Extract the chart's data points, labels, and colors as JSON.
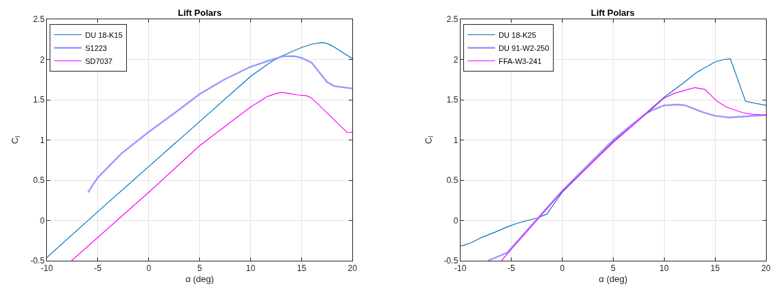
{
  "chart_data": [
    {
      "type": "line",
      "title": "Lift Polars",
      "xlabel": "α (deg)",
      "ylabel": "C$_{l}$",
      "xlim": [
        -10,
        20
      ],
      "xticks": [
        -10,
        -5,
        0,
        5,
        10,
        15,
        20
      ],
      "ylim": [
        -0.5,
        2.5
      ],
      "yticks": [
        -0.5,
        0,
        0.5,
        1,
        1.5,
        2,
        2.5
      ],
      "grid": true,
      "legend": "top left",
      "series": [
        {
          "name": "DU 18-K15",
          "color": "#0072bd",
          "x": [
            -10,
            -5,
            0,
            5,
            10,
            12,
            13,
            15,
            16,
            17,
            17.5,
            18,
            20
          ],
          "values": [
            -0.46,
            0.11,
            0.67,
            1.23,
            1.79,
            1.97,
            2.04,
            2.15,
            2.19,
            2.21,
            2.2,
            2.17,
            2.01
          ]
        },
        {
          "name": "S1223",
          "color": "#9999ff",
          "x": [
            -5.96,
            -5.4,
            -4.95,
            -2.7,
            0,
            2.9,
            5,
            7.4,
            10,
            11.9,
            13.2,
            14.3,
            15,
            16,
            17.5,
            18.2,
            20
          ],
          "values": [
            0.35,
            0.46,
            0.54,
            0.83,
            1.1,
            1.37,
            1.57,
            1.75,
            1.91,
            1.99,
            2.04,
            2.04,
            2.02,
            1.96,
            1.72,
            1.67,
            1.64
          ]
        },
        {
          "name": "SD7037",
          "color": "#ff00ff",
          "x": [
            -7.58,
            0,
            5,
            10,
            11.65,
            12.55,
            13.1,
            13.7,
            14.6,
            15.5,
            16,
            19.5,
            20
          ],
          "values": [
            -0.5,
            0.35,
            0.93,
            1.41,
            1.54,
            1.58,
            1.59,
            1.58,
            1.56,
            1.55,
            1.52,
            1.09,
            1.1
          ]
        }
      ]
    },
    {
      "type": "line",
      "title": "Lift Polars",
      "xlabel": "α (deg)",
      "ylabel": "C$_{l}$",
      "xlim": [
        -10,
        20
      ],
      "xticks": [
        -10,
        -5,
        0,
        5,
        10,
        15,
        20
      ],
      "ylim": [
        -0.5,
        2.5
      ],
      "yticks": [
        -0.5,
        0,
        0.5,
        1,
        1.5,
        2,
        2.5
      ],
      "grid": true,
      "legend": "top left",
      "series": [
        {
          "name": "DU 18-K25",
          "color": "#0072bd",
          "x": [
            -10,
            -9,
            -7.9,
            -6.5,
            -5.4,
            -4.3,
            -3.4,
            -2.5,
            -1.5,
            -0.9,
            0,
            5,
            10,
            11.9,
            13.2,
            15,
            15.9,
            16.5,
            18,
            20
          ],
          "values": [
            -0.32,
            -0.28,
            -0.21,
            -0.14,
            -0.08,
            -0.03,
            0.0,
            0.03,
            0.08,
            0.19,
            0.35,
            0.98,
            1.53,
            1.71,
            1.84,
            1.97,
            2.0,
            2.01,
            1.48,
            1.43
          ]
        },
        {
          "name": "DU 91-W2-250",
          "color": "#9999ff",
          "x": [
            -7.3,
            -5.4,
            0,
            5,
            8.1,
            9,
            10,
            11.4,
            12.1,
            13.7,
            15,
            16.4,
            20
          ],
          "values": [
            -0.5,
            -0.4,
            0.37,
            1.0,
            1.32,
            1.38,
            1.43,
            1.44,
            1.43,
            1.35,
            1.3,
            1.28,
            1.31
          ]
        },
        {
          "name": "FFA-W3-241",
          "color": "#ff00ff",
          "x": [
            -5.96,
            -4.95,
            0,
            5,
            8.1,
            10,
            11,
            13,
            14,
            15.2,
            16.1,
            17.7,
            18.6,
            20
          ],
          "values": [
            -0.5,
            -0.35,
            0.36,
            0.97,
            1.31,
            1.52,
            1.58,
            1.65,
            1.63,
            1.48,
            1.41,
            1.34,
            1.32,
            1.31
          ]
        }
      ]
    }
  ]
}
